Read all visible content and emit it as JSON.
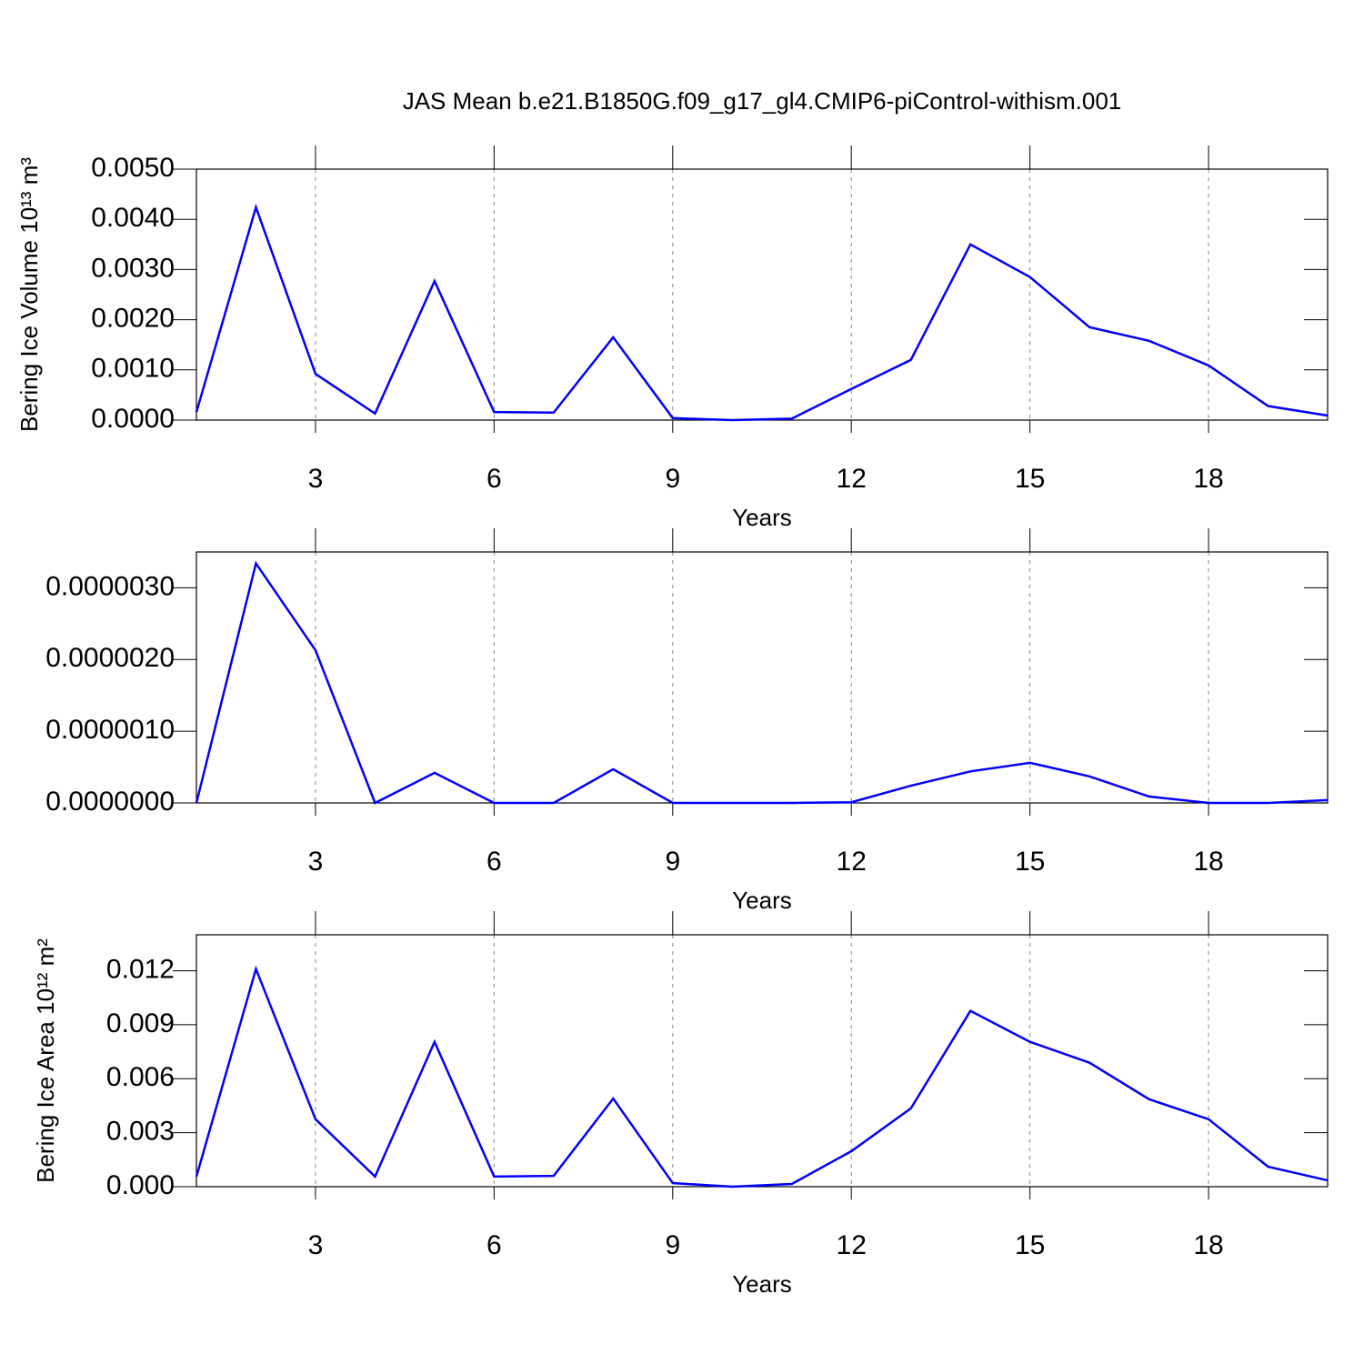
{
  "chart_data": [
    {
      "type": "line",
      "title": "JAS Mean b.e21.B1850G.f09_g17_gl4.CMIP6-piControl-withism.001",
      "xlabel": "Years",
      "ylabel": "Bering Ice Volume 10¹³ m³",
      "x": [
        1,
        2,
        3,
        4,
        5,
        6,
        7,
        8,
        9,
        10,
        11,
        12,
        13,
        14,
        15,
        16,
        17,
        18,
        19,
        20
      ],
      "series": [
        {
          "color": "#0000ff",
          "values": [
            0.00016,
            0.00424,
            0.00092,
            0.00013,
            0.00277,
            0.00016,
            0.00015,
            0.00165,
            4e-05,
            0.0,
            3e-05,
            0.00062,
            0.0012,
            0.0035,
            0.00285,
            0.00185,
            0.00158,
            0.00109,
            0.00028,
            9e-05
          ]
        }
      ],
      "xlim": [
        1,
        20
      ],
      "xticks": [
        3,
        6,
        9,
        12,
        15,
        18
      ],
      "ylim": [
        0,
        0.005
      ],
      "yticks": [
        {
          "value": 0,
          "label": "0.0000"
        },
        {
          "value": 0.001,
          "label": "0.0010"
        },
        {
          "value": 0.002,
          "label": "0.0020"
        },
        {
          "value": 0.003,
          "label": "0.0030"
        },
        {
          "value": 0.004,
          "label": "0.0040"
        },
        {
          "value": 0.005,
          "label": "0.0050"
        }
      ],
      "grid": true
    },
    {
      "type": "line",
      "xlabel": "Years",
      "x": [
        1,
        2,
        3,
        4,
        5,
        6,
        7,
        8,
        9,
        10,
        11,
        12,
        13,
        14,
        15,
        16,
        17,
        18,
        19,
        20
      ],
      "series": [
        {
          "color": "#0000ff",
          "values": [
            0,
            3.34e-06,
            2.13e-06,
            0,
            4.2e-07,
            0,
            0,
            4.7e-07,
            0,
            0,
            0,
            1e-08,
            2.4e-07,
            4.4e-07,
            5.6e-07,
            3.7e-07,
            9e-08,
            0,
            0,
            4e-08
          ]
        }
      ],
      "xlim": [
        1,
        20
      ],
      "xticks": [
        3,
        6,
        9,
        12,
        15,
        18
      ],
      "ylim": [
        0,
        3.5e-06
      ],
      "yticks": [
        {
          "value": 0,
          "label": "0.0000000"
        },
        {
          "value": 1e-06,
          "label": "0.0000010"
        },
        {
          "value": 2e-06,
          "label": "0.0000020"
        },
        {
          "value": 3e-06,
          "label": "0.0000030"
        }
      ],
      "grid": true
    },
    {
      "type": "line",
      "xlabel": "Years",
      "ylabel": "Bering Ice Area 10¹² m²",
      "x": [
        1,
        2,
        3,
        4,
        5,
        6,
        7,
        8,
        9,
        10,
        11,
        12,
        13,
        14,
        15,
        16,
        17,
        18,
        19,
        20
      ],
      "series": [
        {
          "color": "#0000ff",
          "values": [
            0.00056,
            0.0121,
            0.00375,
            0.00056,
            0.00805,
            0.00056,
            0.0006,
            0.0049,
            0.0002,
            0,
            0.00015,
            0.00197,
            0.00435,
            0.00977,
            0.00805,
            0.00689,
            0.00486,
            0.00375,
            0.00111,
            0.00035
          ]
        }
      ],
      "xlim": [
        1,
        20
      ],
      "xticks": [
        3,
        6,
        9,
        12,
        15,
        18
      ],
      "ylim": [
        0,
        0.014
      ],
      "yticks": [
        {
          "value": 0,
          "label": "0.000"
        },
        {
          "value": 0.003,
          "label": "0.003"
        },
        {
          "value": 0.006,
          "label": "0.006"
        },
        {
          "value": 0.009,
          "label": "0.009"
        },
        {
          "value": 0.012,
          "label": "0.012"
        }
      ],
      "grid": true
    }
  ]
}
